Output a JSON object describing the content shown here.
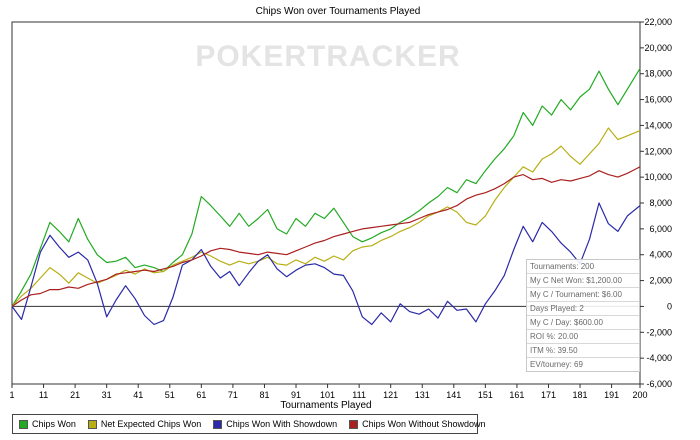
{
  "chart_data": {
    "type": "line",
    "title": "Chips Won over Tournaments Played",
    "xlabel": "Tournaments Played",
    "ylabel": "",
    "xlim": [
      1,
      200
    ],
    "ylim": [
      -6000,
      22000
    ],
    "x_ticks": [
      1,
      11,
      21,
      31,
      41,
      51,
      61,
      71,
      81,
      91,
      101,
      111,
      121,
      131,
      141,
      151,
      161,
      171,
      181,
      191,
      200
    ],
    "y_ticks": [
      -6000,
      -4000,
      -2000,
      0,
      2000,
      4000,
      6000,
      8000,
      10000,
      12000,
      14000,
      16000,
      18000,
      20000,
      22000
    ],
    "legend_position": "bottom",
    "watermark": "POKERTRACKER",
    "series": [
      {
        "name": "Chips Won",
        "color": "#22aa22",
        "x": [
          1,
          4,
          7,
          10,
          13,
          16,
          19,
          22,
          25,
          28,
          31,
          34,
          37,
          40,
          43,
          46,
          49,
          52,
          55,
          58,
          61,
          64,
          67,
          70,
          73,
          76,
          79,
          82,
          85,
          88,
          91,
          94,
          97,
          100,
          103,
          106,
          109,
          112,
          115,
          118,
          121,
          124,
          127,
          130,
          133,
          136,
          139,
          142,
          145,
          148,
          151,
          154,
          157,
          160,
          163,
          166,
          169,
          172,
          175,
          178,
          181,
          184,
          187,
          190,
          193,
          196,
          200
        ],
        "y": [
          0,
          1200,
          2500,
          4500,
          6500,
          5800,
          5000,
          6800,
          5200,
          4000,
          3400,
          3500,
          3800,
          3000,
          3200,
          3000,
          2700,
          3400,
          4000,
          5600,
          8500,
          7800,
          7000,
          6200,
          7200,
          6200,
          6800,
          7500,
          6000,
          5600,
          6800,
          6200,
          7200,
          6800,
          7600,
          6500,
          5400,
          5000,
          5300,
          5700,
          6000,
          6500,
          6900,
          7400,
          8000,
          8500,
          9200,
          8800,
          9800,
          9500,
          10500,
          11400,
          12200,
          13200,
          15000,
          14000,
          15500,
          14800,
          16000,
          15200,
          16200,
          16800,
          18200,
          16800,
          15600,
          16800,
          18400
        ]
      },
      {
        "name": "Net Expected Chips Won",
        "color": "#b8ae14",
        "x": [
          1,
          4,
          7,
          10,
          13,
          16,
          19,
          22,
          25,
          28,
          31,
          34,
          37,
          40,
          43,
          46,
          49,
          52,
          55,
          58,
          61,
          64,
          67,
          70,
          73,
          76,
          79,
          82,
          85,
          88,
          91,
          94,
          97,
          100,
          103,
          106,
          109,
          112,
          115,
          118,
          121,
          124,
          127,
          130,
          133,
          136,
          139,
          142,
          145,
          148,
          151,
          154,
          157,
          160,
          163,
          166,
          169,
          172,
          175,
          178,
          181,
          184,
          187,
          190,
          193,
          196,
          200
        ],
        "y": [
          0,
          800,
          1400,
          2200,
          3000,
          2500,
          1800,
          2600,
          2200,
          1800,
          2100,
          2400,
          2800,
          2500,
          2900,
          2600,
          2700,
          3200,
          3500,
          3800,
          4200,
          3900,
          3500,
          3200,
          3500,
          3300,
          3500,
          3800,
          3300,
          3200,
          3600,
          3300,
          3800,
          3500,
          3900,
          3600,
          4300,
          4600,
          4700,
          5100,
          5400,
          5800,
          6100,
          6500,
          7000,
          7300,
          7700,
          7300,
          6500,
          6300,
          7000,
          8200,
          9200,
          10000,
          10800,
          10400,
          11400,
          11800,
          12400,
          11600,
          11000,
          11800,
          12600,
          13800,
          12900,
          13200,
          13600
        ]
      },
      {
        "name": "Chips Won With Showdown",
        "color": "#2a2aaa",
        "x": [
          1,
          4,
          7,
          10,
          13,
          16,
          19,
          22,
          25,
          28,
          31,
          34,
          37,
          40,
          43,
          46,
          49,
          52,
          55,
          58,
          61,
          64,
          67,
          70,
          73,
          76,
          79,
          82,
          85,
          88,
          91,
          94,
          97,
          100,
          103,
          106,
          109,
          112,
          115,
          118,
          121,
          124,
          127,
          130,
          133,
          136,
          139,
          142,
          145,
          148,
          151,
          154,
          157,
          160,
          163,
          166,
          169,
          172,
          175,
          178,
          181,
          184,
          187,
          190,
          193,
          196,
          200
        ],
        "y": [
          0,
          -1000,
          1500,
          4200,
          5500,
          4600,
          3800,
          4200,
          3600,
          1800,
          -800,
          500,
          1600,
          600,
          -700,
          -1400,
          -1100,
          700,
          3200,
          3600,
          4400,
          3100,
          2200,
          2700,
          1600,
          2600,
          3500,
          4000,
          2900,
          2300,
          2800,
          3200,
          3300,
          3000,
          2500,
          2400,
          1200,
          -800,
          -1400,
          -500,
          -1200,
          200,
          -400,
          -600,
          -200,
          -900,
          400,
          -300,
          -200,
          -1200,
          200,
          1200,
          2400,
          4400,
          6200,
          5000,
          6500,
          5800,
          4900,
          4200,
          3300,
          5200,
          8000,
          6400,
          5800,
          7000,
          7800
        ]
      },
      {
        "name": "Chips Won Without Showdown",
        "color": "#aa2020",
        "x": [
          1,
          4,
          7,
          10,
          13,
          16,
          19,
          22,
          25,
          28,
          31,
          34,
          37,
          40,
          43,
          46,
          49,
          52,
          55,
          58,
          61,
          64,
          67,
          70,
          73,
          76,
          79,
          82,
          85,
          88,
          91,
          94,
          97,
          100,
          103,
          106,
          109,
          112,
          115,
          118,
          121,
          124,
          127,
          130,
          133,
          136,
          139,
          142,
          145,
          148,
          151,
          154,
          157,
          160,
          163,
          166,
          169,
          172,
          175,
          178,
          181,
          184,
          187,
          190,
          193,
          196,
          200
        ],
        "y": [
          0,
          500,
          900,
          1000,
          1300,
          1300,
          1500,
          1400,
          1700,
          1900,
          2100,
          2500,
          2600,
          2700,
          2800,
          2700,
          2900,
          3100,
          3400,
          3600,
          3900,
          4300,
          4500,
          4400,
          4200,
          4100,
          4000,
          4200,
          4100,
          4000,
          4300,
          4600,
          4900,
          5100,
          5400,
          5600,
          5800,
          6000,
          6100,
          6200,
          6300,
          6400,
          6500,
          6800,
          7100,
          7300,
          7500,
          7800,
          8300,
          8600,
          8800,
          9100,
          9500,
          10000,
          10200,
          9800,
          9900,
          9600,
          9800,
          9700,
          9900,
          10100,
          10500,
          10200,
          10000,
          10300,
          10800
        ]
      }
    ]
  },
  "stats": [
    "Tournaments: 200",
    "My C Net Won: $1,200.00",
    "My C / Tournament: $6.00",
    "Days Played: 2",
    "My C / Day: $600.00",
    "ROI %: 20.00",
    "ITM %: 39.50",
    "EV/tourney: 69"
  ]
}
